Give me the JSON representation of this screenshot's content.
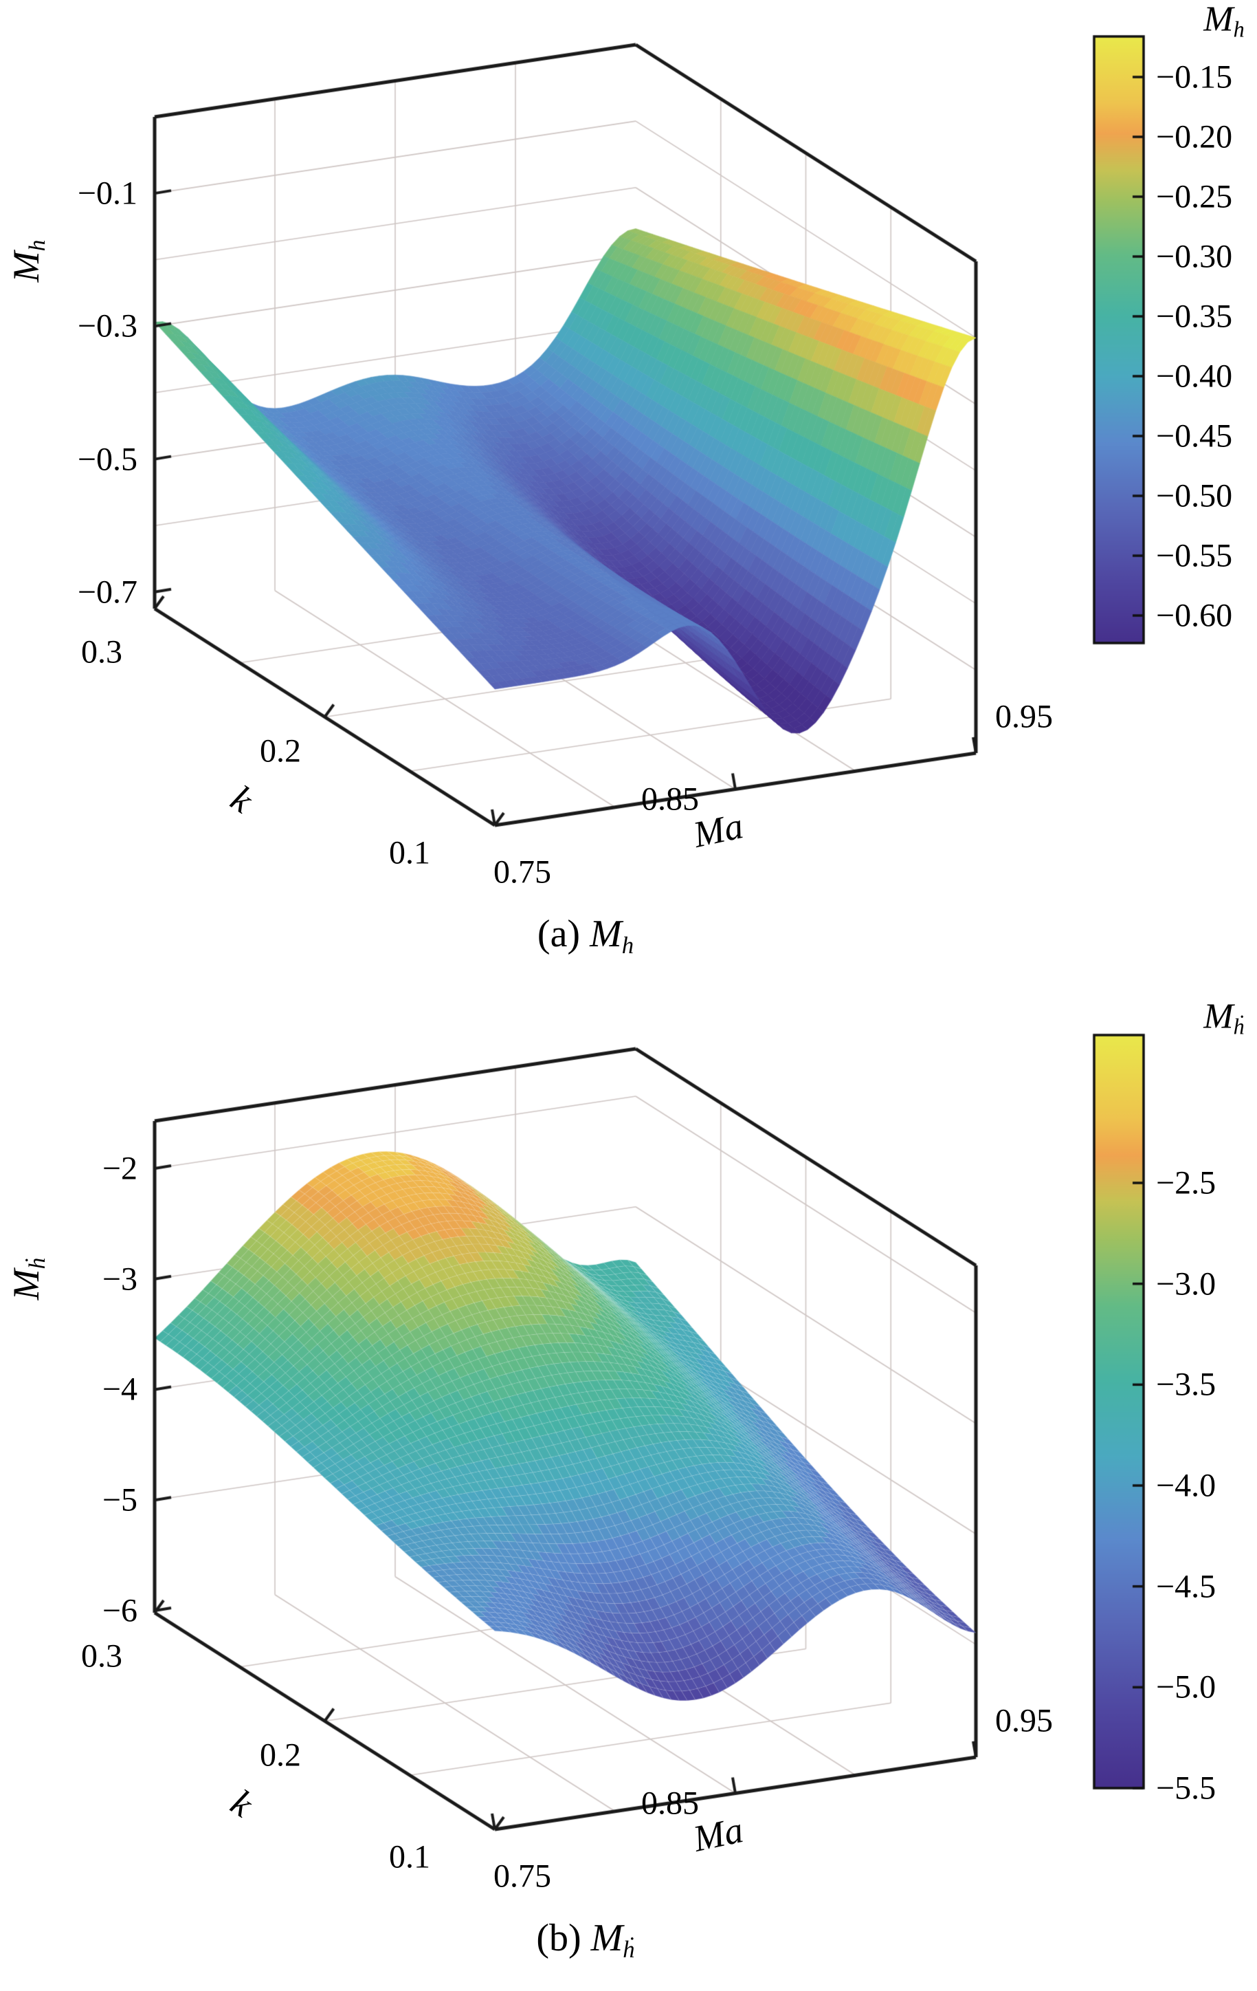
{
  "figure": {
    "background": "#ffffff",
    "description": "Two 3D surface plots of unsteady aerodynamic derivatives versus Mach number Ma and reduced frequency k"
  },
  "colormap": {
    "stops": [
      {
        "t": 0.0,
        "c": "#46308c"
      },
      {
        "t": 0.1,
        "c": "#4f46a0"
      },
      {
        "t": 0.22,
        "c": "#5868b8"
      },
      {
        "t": 0.33,
        "c": "#5b89cc"
      },
      {
        "t": 0.44,
        "c": "#4ba9c0"
      },
      {
        "t": 0.54,
        "c": "#47b3a4"
      },
      {
        "t": 0.64,
        "c": "#63bb86"
      },
      {
        "t": 0.73,
        "c": "#9fc160"
      },
      {
        "t": 0.78,
        "c": "#c6c254"
      },
      {
        "t": 0.84,
        "c": "#f0a44f"
      },
      {
        "t": 0.89,
        "c": "#eec44e"
      },
      {
        "t": 1.0,
        "c": "#e9e84b"
      }
    ]
  },
  "chart_data": [
    {
      "type": "surface",
      "panel": "a",
      "caption": {
        "prefix": "(a) ",
        "main": "M",
        "sub": "h"
      },
      "x_axis": {
        "label": "Ma",
        "min": 0.75,
        "max": 0.95,
        "tick_labels": [
          "0.75",
          "0.85",
          "0.95"
        ],
        "tick_values": [
          0.75,
          0.85,
          0.95
        ],
        "grid_values": [
          0.8,
          0.85,
          0.9
        ]
      },
      "y_axis": {
        "label": "k",
        "min": 0.1,
        "max": 0.3,
        "tick_labels": [
          "0.3",
          "0.2",
          "0.1"
        ],
        "tick_values": [
          0.3,
          0.2,
          0.1
        ],
        "grid_values": [
          0.15,
          0.2,
          0.25
        ]
      },
      "z_axis": {
        "label_main": "M",
        "label_sub": "h",
        "tick_labels": [
          "−0.1",
          "−0.3",
          "−0.5",
          "−0.7"
        ],
        "tick_values": [
          -0.1,
          -0.3,
          -0.5,
          -0.7
        ],
        "min": -0.725,
        "max": 0.015,
        "grid_values": [
          -0.1,
          -0.2,
          -0.3,
          -0.4,
          -0.5,
          -0.6
        ]
      },
      "colorbar": {
        "title_main": "M",
        "title_sub": "h",
        "tick_labels": [
          "−0.15",
          "−0.20",
          "−0.25",
          "−0.30",
          "−0.35",
          "−0.40",
          "−0.45",
          "−0.50",
          "−0.55",
          "−0.60"
        ],
        "tick_values": [
          -0.15,
          -0.2,
          -0.25,
          -0.3,
          -0.35,
          -0.4,
          -0.45,
          -0.5,
          -0.55,
          -0.6
        ],
        "value_top": -0.116,
        "value_bottom": -0.623
      },
      "surface_model": {
        "base": -0.52,
        "terms": [
          {
            "amp": 0.22,
            "u0": 0.0,
            "su": 0.16,
            "q": 1
          },
          {
            "amp": 0.42,
            "u0": 1.0,
            "su": 0.16,
            "c0": 0.6,
            "c1": 0.4,
            "p": 1
          },
          {
            "amp": -0.14,
            "u0": 0.63,
            "su": 0.13,
            "c0": 0.15,
            "c1": 0.85,
            "p": 1
          },
          {
            "amp": 0.06,
            "u0": 0.42,
            "su": 0.12,
            "c0": 0.0,
            "c1": 1.0,
            "p": 1
          },
          {
            "amp": 0.1,
            "u0": 0.5,
            "su": 0.3,
            "q": 2
          }
        ]
      },
      "sample_grid": {
        "Ma": [
          0.75,
          0.8,
          0.85,
          0.9,
          0.95
        ],
        "k": [
          0.1,
          0.15,
          0.2,
          0.25,
          0.3
        ],
        "z_rows_by_k": [
          [
            -0.52,
            -0.51,
            -0.53,
            -0.54,
            -0.1
          ],
          [
            -0.47,
            -0.51,
            -0.53,
            -0.53,
            -0.14
          ],
          [
            -0.41,
            -0.49,
            -0.51,
            -0.51,
            -0.18
          ],
          [
            -0.35,
            -0.48,
            -0.47,
            -0.49,
            -0.22
          ],
          [
            -0.29,
            -0.45,
            -0.43,
            -0.46,
            -0.26
          ]
        ]
      },
      "extrema": {
        "min": {
          "Ma": 0.88,
          "k": 0.1,
          "z": -0.66
        },
        "max": {
          "Ma": 0.95,
          "k": 0.1,
          "z": -0.1
        },
        "left_edge": {
          "Ma": 0.75,
          "k": 0.3,
          "z": -0.3
        }
      }
    },
    {
      "type": "surface",
      "panel": "b",
      "caption": {
        "prefix": "(b) ",
        "main": "M",
        "sub": "ḣ"
      },
      "x_axis": {
        "label": "Ma",
        "min": 0.75,
        "max": 0.95,
        "tick_labels": [
          "0.75",
          "0.85",
          "0.95"
        ],
        "tick_values": [
          0.75,
          0.85,
          0.95
        ],
        "grid_values": [
          0.8,
          0.85,
          0.9
        ]
      },
      "y_axis": {
        "label": "k",
        "min": 0.1,
        "max": 0.3,
        "tick_labels": [
          "0.3",
          "0.2",
          "0.1"
        ],
        "tick_values": [
          0.3,
          0.2,
          0.1
        ],
        "grid_values": [
          0.15,
          0.2,
          0.25
        ]
      },
      "z_axis": {
        "label_main": "M",
        "label_sub": "ḣ",
        "tick_labels": [
          "−2",
          "−3",
          "−4",
          "−5",
          "−6"
        ],
        "tick_values": [
          -2,
          -3,
          -4,
          -5,
          -6
        ],
        "min": -6.019,
        "max": -1.571,
        "grid_values": [
          -2,
          -3,
          -4,
          -5
        ]
      },
      "colorbar": {
        "title_main": "M",
        "title_sub": "ḣ",
        "tick_labels": [
          "−2.5",
          "−3.0",
          "−3.5",
          "−4.0",
          "−4.5",
          "−5.0",
          "−5.5"
        ],
        "tick_values": [
          -2.5,
          -3.0,
          -3.5,
          -4.0,
          -4.5,
          -5.0,
          -5.5
        ],
        "value_top": -1.767,
        "value_bottom": -5.5
      },
      "surface_model": {
        "base": -4.2,
        "terms": [
          {
            "amp": 2.05,
            "u0": 0.45,
            "su": 0.4243,
            "sv": 0.7416
          },
          {
            "amp": -1.25,
            "u0": 0.42,
            "su": 0.28,
            "c0": 0.0,
            "c1": 1.0,
            "p": 1.6
          },
          {
            "amp": -0.75,
            "u0": 1.02,
            "su": 0.17,
            "c0": 0.25,
            "c1": 0.75,
            "p": 1
          },
          {
            "amp": 0.5,
            "u0": 1.0,
            "su": 0.1,
            "q": 2
          }
        ]
      },
      "sample_grid": {
        "Ma": [
          0.75,
          0.8,
          0.85,
          0.9,
          0.95
        ],
        "k": [
          0.1,
          0.15,
          0.2,
          0.25,
          0.3
        ],
        "z_rows_by_k": [
          [
            -4.22,
            -4.8,
            -5.02,
            -4.37,
            -4.89
          ],
          [
            -4.04,
            -4.16,
            -4.2,
            -4.0,
            -4.64
          ],
          [
            -3.82,
            -3.44,
            -3.3,
            -3.55,
            -4.3
          ],
          [
            -3.62,
            -2.83,
            -2.52,
            -3.15,
            -3.9
          ],
          [
            -3.53,
            -2.56,
            -2.18,
            -2.97,
            -3.5
          ]
        ]
      },
      "extrema": {
        "max": {
          "Ma": 0.84,
          "k": 0.3,
          "z": -2.15
        },
        "min": {
          "Ma": 0.83,
          "k": 0.1,
          "z": -5.1
        },
        "left_edge": {
          "Ma": 0.75,
          "k": 0.3,
          "z": -3.53
        }
      }
    }
  ]
}
